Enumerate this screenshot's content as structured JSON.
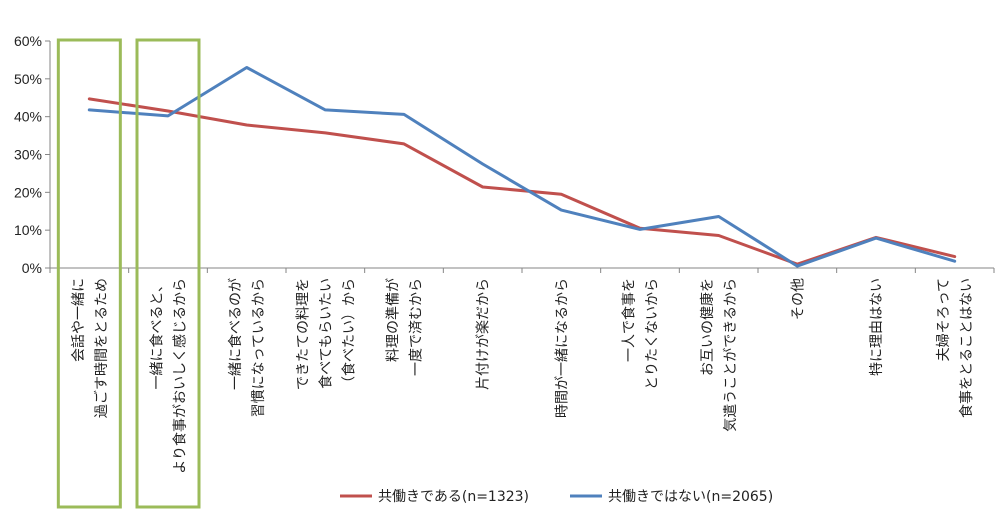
{
  "chart_data": {
    "type": "line",
    "ylim": [
      0,
      60
    ],
    "y_ticks": [
      "0%",
      "10%",
      "20%",
      "30%",
      "40%",
      "50%",
      "60%"
    ],
    "categories": [
      [
        "会話や一緒に",
        "過ごす時間をとるため"
      ],
      [
        "一緒に食べると、",
        "より食事がおいしく感じるから"
      ],
      [
        "一緒に食べるのが",
        "習慣になっているから"
      ],
      [
        "できたての料理を",
        "食べてもらいたい",
        "（食べたい）から"
      ],
      [
        "料理の準備が",
        "一度で済むから"
      ],
      [
        "片付けが楽だから"
      ],
      [
        "時間が一緒になるから"
      ],
      [
        "一人で食事を",
        "とりたくないから"
      ],
      [
        "お互いの健康を",
        "気遣うことができるから"
      ],
      [
        "その他"
      ],
      [
        "特に理由はない"
      ],
      [
        "夫婦そろって",
        "食事をとることはない"
      ]
    ],
    "series": [
      {
        "name": "共働きである(n=1323)",
        "color": "#c0504d",
        "values": [
          44.7,
          41.5,
          37.8,
          35.7,
          32.8,
          21.4,
          19.5,
          10.5,
          8.6,
          1.0,
          8.1,
          3.0
        ]
      },
      {
        "name": "共働きではない(n=2065)",
        "color": "#4f81bd",
        "values": [
          41.8,
          40.2,
          53.0,
          41.8,
          40.6,
          27.5,
          15.3,
          10.2,
          13.6,
          0.5,
          7.9,
          1.8
        ]
      }
    ],
    "highlight_categories": [
      0,
      1
    ],
    "highlight_color": "#9bbb59",
    "grid": false,
    "legend": "bottom"
  }
}
